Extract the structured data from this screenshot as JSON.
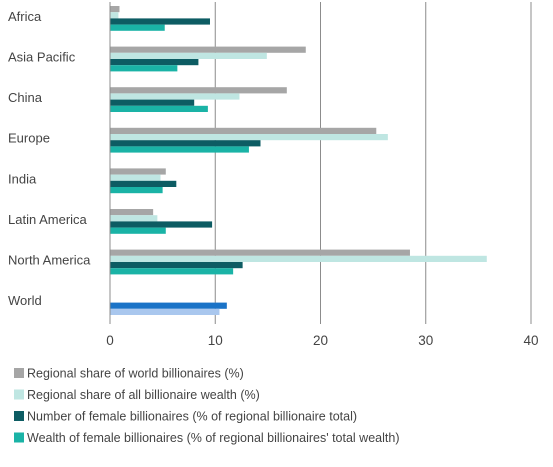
{
  "chart_data": {
    "type": "bar",
    "orientation": "horizontal",
    "categories": [
      "Africa",
      "Asia Pacific",
      "China",
      "Europe",
      "India",
      "Latin America",
      "North America",
      "World"
    ],
    "series": [
      {
        "name": "Regional share of world billionaires (%)",
        "color": "#a6a6a6",
        "values": [
          0.9,
          18.6,
          16.8,
          25.3,
          5.3,
          4.1,
          28.5,
          null
        ]
      },
      {
        "name": "Regional share of all billionaire wealth (%)",
        "color": "#bfe6e2",
        "values": [
          0.8,
          14.9,
          12.3,
          26.4,
          4.8,
          4.5,
          35.8,
          null
        ]
      },
      {
        "name": "Number of female billionaires (% of regional billionaire total)",
        "color": "#0d5c63",
        "values": [
          9.5,
          8.4,
          8.0,
          14.3,
          6.3,
          9.7,
          12.6,
          11.1
        ]
      },
      {
        "name": "Wealth of female billionaires (% of regional billionaires' total wealth)",
        "color": "#1ab3a6",
        "values": [
          5.2,
          6.4,
          9.3,
          13.2,
          5.0,
          5.3,
          11.7,
          10.4
        ]
      }
    ],
    "world_colors": {
      "Number of female billionaires (% of regional billionaire total)": "#1a73c7",
      "Wealth of female billionaires (% of regional billionaires' total wealth)": "#a9c7ee"
    },
    "xlim": [
      0,
      40
    ],
    "xticks": [
      0,
      10,
      20,
      30,
      40
    ],
    "title": "",
    "xlabel": "",
    "ylabel": "",
    "grid": "vertical",
    "legend_position": "bottom-left"
  }
}
